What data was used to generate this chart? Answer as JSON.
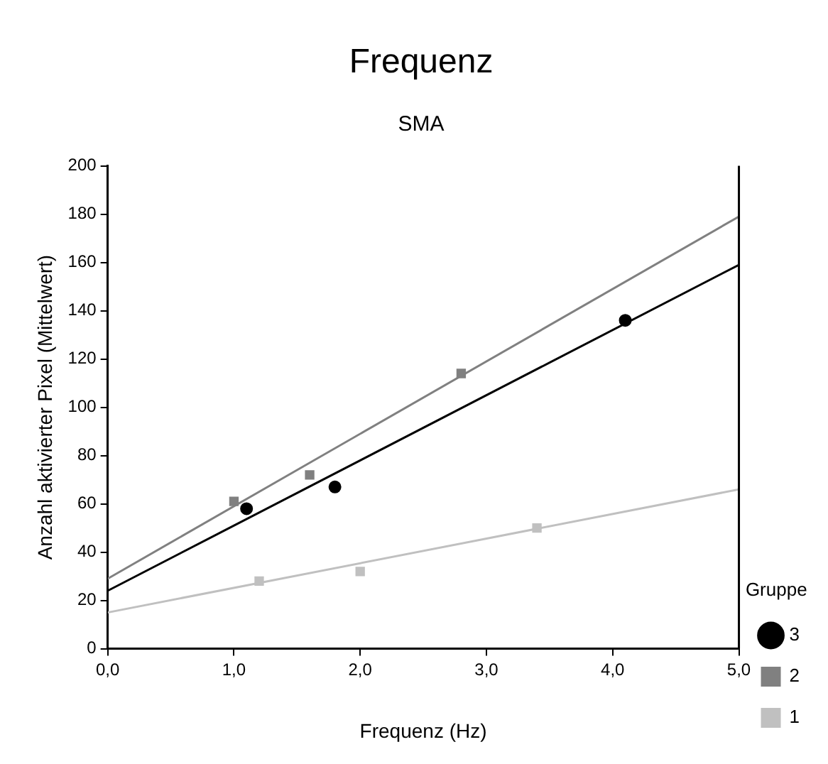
{
  "chart_data": {
    "type": "scatter",
    "title": "Frequenz",
    "subtitle": "SMA",
    "xlabel": "Frequenz (Hz)",
    "ylabel": "Anzahl aktivierter Pixel (Mittelwert)",
    "legend_title": "Gruppe",
    "legend": "bottom right",
    "grid": false,
    "xlim": [
      0,
      5
    ],
    "xticks": [
      {
        "value": 0,
        "label": "0,0"
      },
      {
        "value": 1,
        "label": "1,0"
      },
      {
        "value": 2,
        "label": "2,0"
      },
      {
        "value": 3,
        "label": "3,0"
      },
      {
        "value": 4,
        "label": "4,0"
      },
      {
        "value": 5,
        "label": "5,0"
      }
    ],
    "ylim": [
      0,
      200
    ],
    "yticks": [
      0,
      20,
      40,
      60,
      80,
      100,
      120,
      140,
      160,
      180,
      200
    ],
    "series": [
      {
        "name": "3",
        "color": "#000000",
        "marker": "circle",
        "x": [
          1.1,
          1.8,
          4.1
        ],
        "values": [
          58,
          67,
          136
        ]
      },
      {
        "type": "line",
        "color": "#000000",
        "marker": "none",
        "x": [
          0,
          5
        ],
        "values": [
          24,
          159
        ]
      },
      {
        "name": "2",
        "color": "#808080",
        "marker": "square",
        "x": [
          1.0,
          1.6,
          2.8
        ],
        "values": [
          61,
          72,
          114
        ]
      },
      {
        "type": "line",
        "color": "#808080",
        "marker": "none",
        "x": [
          0,
          5
        ],
        "values": [
          29,
          179
        ]
      },
      {
        "name": "1",
        "color": "#c0c0c0",
        "marker": "square",
        "x": [
          1.2,
          2.0,
          3.4
        ],
        "values": [
          28,
          32,
          50
        ]
      },
      {
        "type": "line",
        "color": "#c0c0c0",
        "marker": "none",
        "x": [
          0,
          5
        ],
        "values": [
          15,
          66
        ]
      }
    ]
  }
}
